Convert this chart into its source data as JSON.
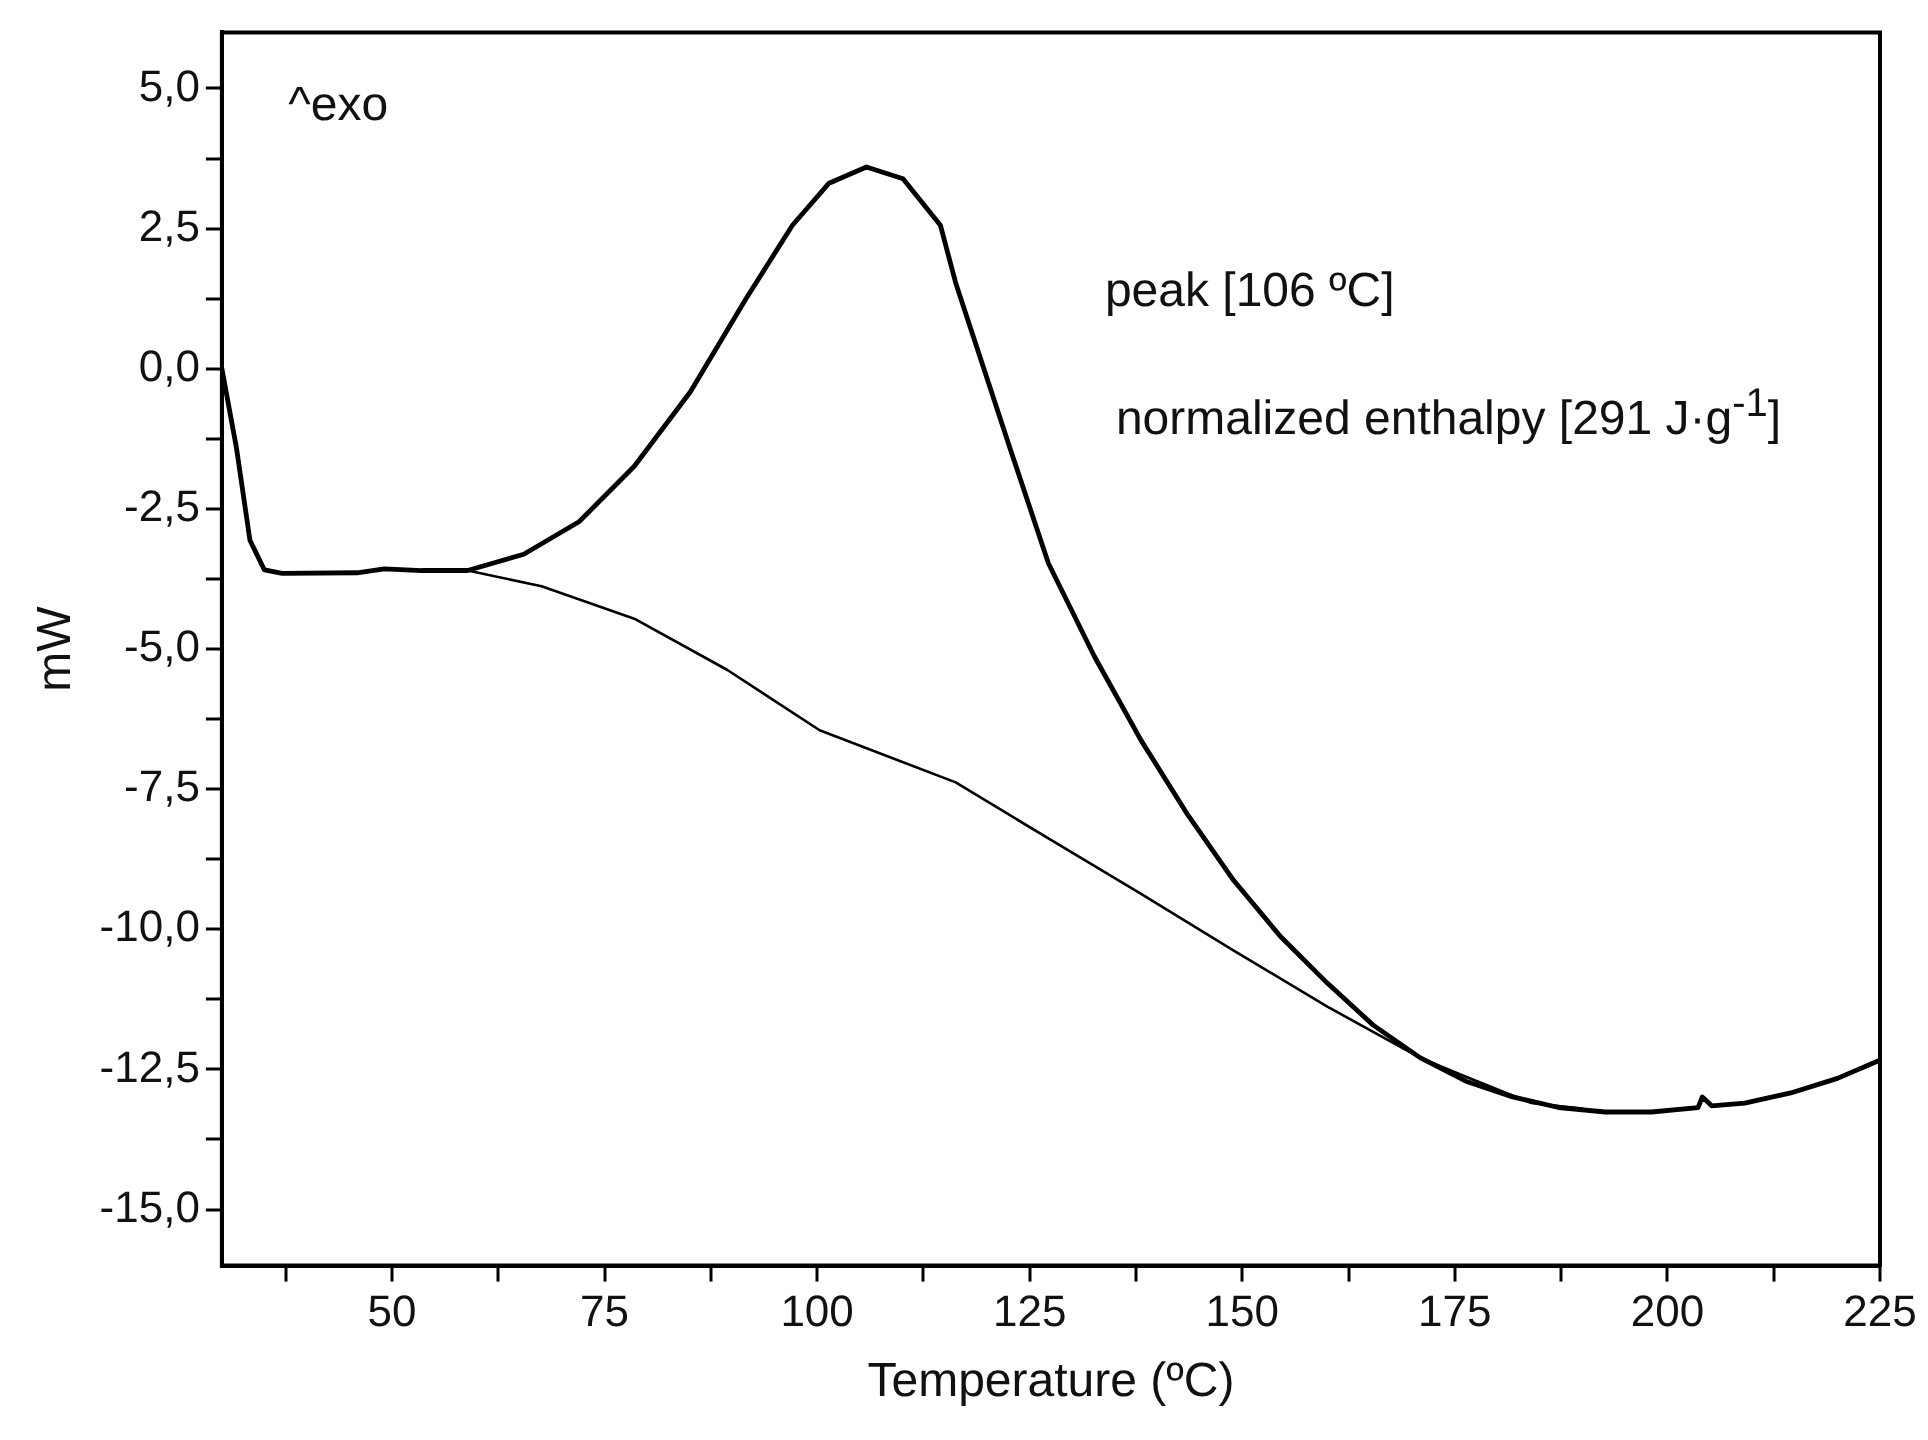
{
  "chart_data": {
    "type": "line",
    "xlabel": "Temperature (ºC)",
    "ylabel": "mW",
    "annotations": [
      "^exo",
      "peak [106 ºC]",
      "normalized enthalpy [291 J·g$^{-1}$]"
    ],
    "xlim": [
      30,
      225
    ],
    "ylim": [
      -16,
      6
    ],
    "xticks": [
      {
        "value": 37.5,
        "label": null
      },
      50,
      {
        "value": 62.5,
        "label": null
      },
      75,
      {
        "value": 87.5,
        "label": null
      },
      100,
      {
        "value": 112.5,
        "label": null
      },
      125,
      {
        "value": 137.5,
        "label": null
      },
      150,
      {
        "value": 162.5,
        "label": null
      },
      175,
      {
        "value": 187.5,
        "label": null
      },
      200,
      {
        "value": 212.5,
        "label": null
      },
      225
    ],
    "yticks": [
      {
        "value": -15,
        "label": "-15,0"
      },
      {
        "value": -13.75,
        "label": null
      },
      {
        "value": -12.5,
        "label": "-12,5"
      },
      {
        "value": -11.25,
        "label": null
      },
      {
        "value": -10,
        "label": "-10,0"
      },
      {
        "value": -8.75,
        "label": null
      },
      {
        "value": -7.5,
        "label": "-7,5"
      },
      {
        "value": -6.25,
        "label": null
      },
      {
        "value": -5,
        "label": "-5,0"
      },
      {
        "value": -3.75,
        "label": null
      },
      {
        "value": -2.5,
        "label": "-2,5"
      },
      {
        "value": -1.25,
        "label": null
      },
      {
        "value": 0,
        "label": "0,0"
      },
      {
        "value": 1.25,
        "label": null
      },
      {
        "value": 2.5,
        "label": "2,5"
      },
      {
        "value": 3.75,
        "label": null
      },
      {
        "value": 5,
        "label": "5,0"
      }
    ],
    "grid": false,
    "legend": false,
    "marker": "none",
    "line_style": "solid",
    "series": [
      {
        "color": "#000000",
        "x": [
          30,
          31.7,
          33.3,
          35,
          37.1,
          45.9,
          49.1,
          53.5,
          58.9,
          65.5,
          72,
          78.5,
          85.1,
          91.6,
          97.1,
          101.4,
          105.8,
          110.1,
          114.5,
          116.3,
          122.8,
          127.2,
          132.6,
          138.1,
          143.6,
          149,
          154.5,
          160,
          165.4,
          170.9,
          176.3,
          181.8,
          187.2,
          192.7,
          198.1,
          203.6,
          204.1,
          205.2,
          209.1,
          214.5,
          220,
          224.9
        ],
        "values": [
          0,
          -1.4,
          -3.06,
          -3.59,
          -3.65,
          -3.64,
          -3.57,
          -3.6,
          -3.6,
          -3.31,
          -2.73,
          -1.74,
          -0.41,
          1.24,
          2.56,
          3.31,
          3.6,
          3.39,
          2.56,
          1.53,
          -1.47,
          -3.47,
          -5.13,
          -6.63,
          -7.96,
          -9.13,
          -10.13,
          -10.96,
          -11.71,
          -12.29,
          -12.71,
          -12.99,
          -13.18,
          -13.26,
          -13.26,
          -13.18,
          -12.99,
          -13.15,
          -13.1,
          -12.92,
          -12.66,
          -12.34
        ]
      },
      {
        "color": "#000000",
        "x": [
          58.9,
          67.6,
          78.5,
          89.4,
          100.3,
          116.3,
          127.2,
          138.1,
          149,
          160,
          170.9,
          176.3,
          184,
          190
        ],
        "values": [
          -3.6,
          -3.88,
          -4.46,
          -5.37,
          -6.45,
          -7.38,
          -8.38,
          -9.37,
          -10.38,
          -11.38,
          -12.29,
          -12.63,
          -13.1,
          -13.2
        ]
      }
    ]
  }
}
